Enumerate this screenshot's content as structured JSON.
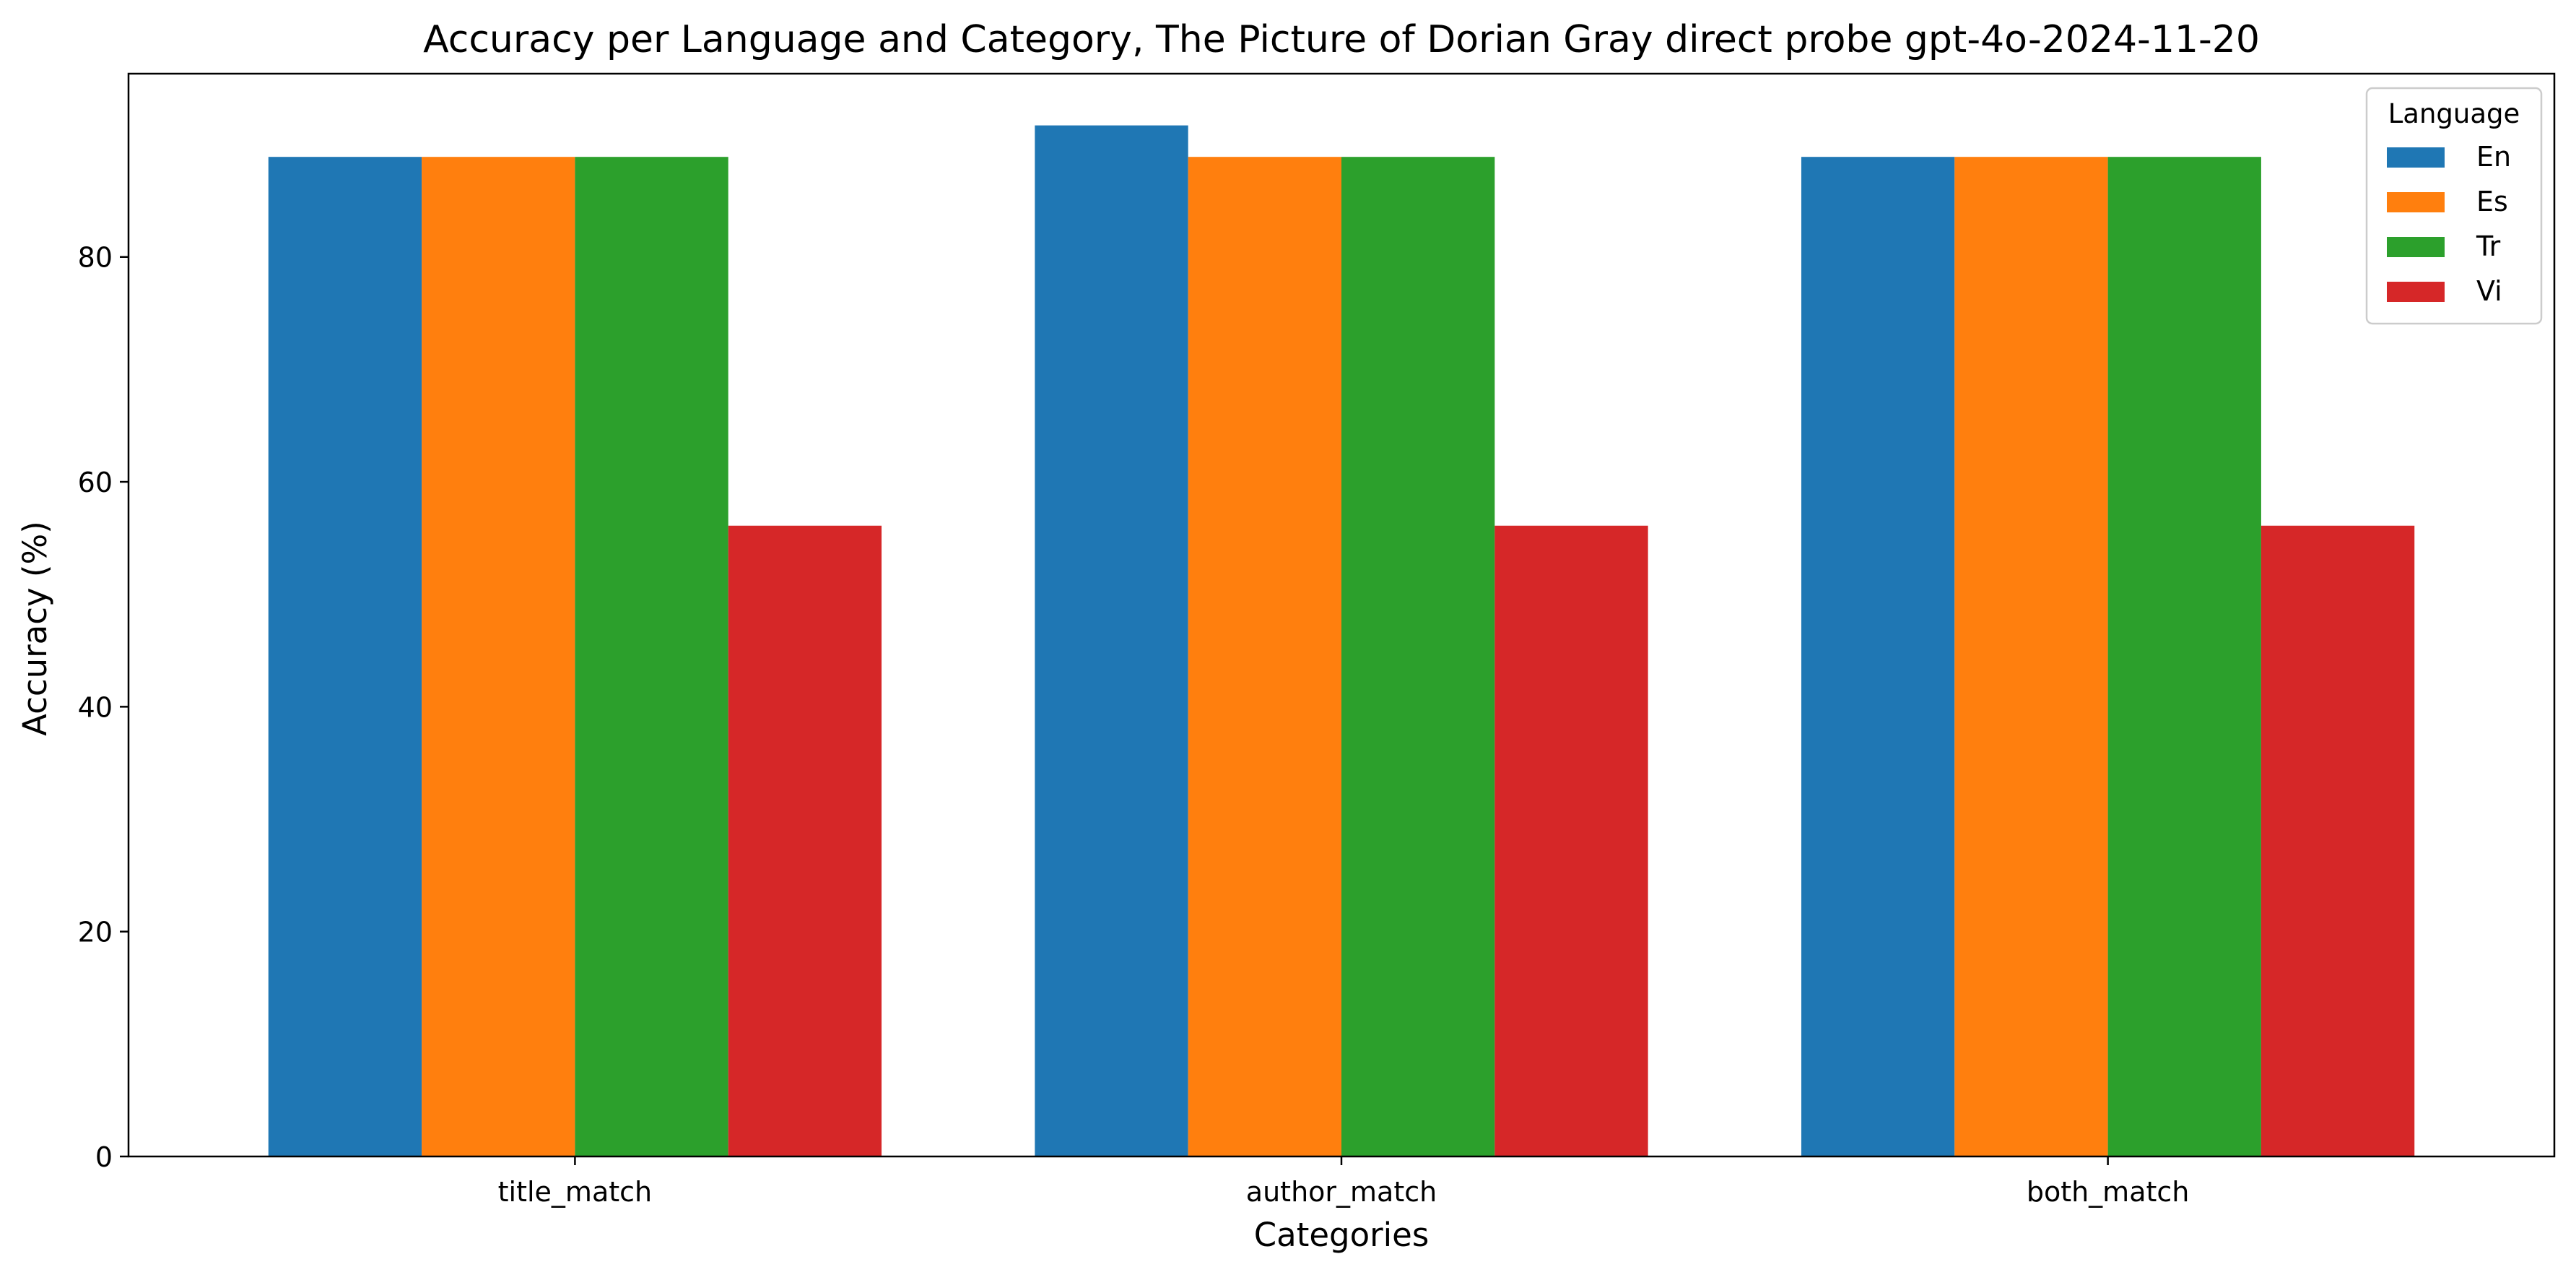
{
  "chart_data": {
    "type": "bar",
    "title": "Accuracy per Language and Category, The Picture of Dorian Gray direct probe gpt-4o-2024-11-20",
    "xlabel": "Categories",
    "ylabel": "Accuracy (%)",
    "categories": [
      "title_match",
      "author_match",
      "both_match"
    ],
    "series": [
      {
        "name": "En",
        "color": "#1f77b4",
        "values": [
          88.9,
          91.7,
          88.9
        ]
      },
      {
        "name": "Es",
        "color": "#ff7f0e",
        "values": [
          88.9,
          88.9,
          88.9
        ]
      },
      {
        "name": "Tr",
        "color": "#2ca02c",
        "values": [
          88.9,
          88.9,
          88.9
        ]
      },
      {
        "name": "Vi",
        "color": "#d62728",
        "values": [
          56.1,
          56.1,
          56.1
        ]
      }
    ],
    "ylim": [
      0,
      96.3
    ],
    "yticks": [
      0,
      20,
      40,
      60,
      80
    ],
    "grid": false,
    "legend": {
      "title": "Language",
      "placement": "top-right"
    }
  }
}
